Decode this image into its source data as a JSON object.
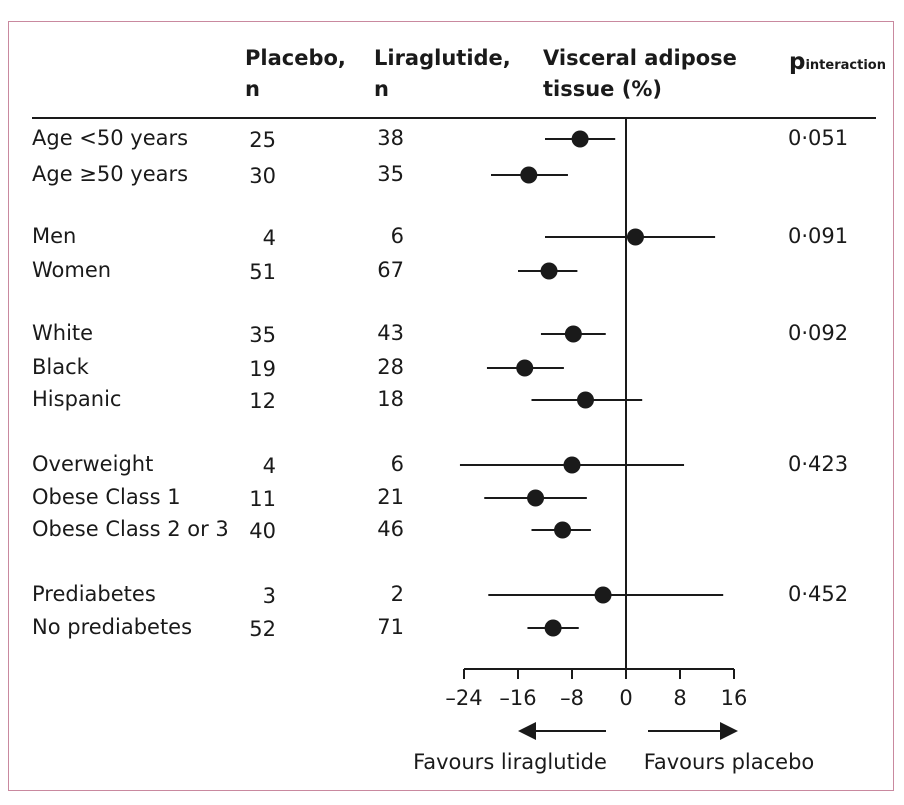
{
  "headers": {
    "placebo_line1": "Placebo,",
    "placebo_line2": "n",
    "liraglutide_line1": "Liraglutide,",
    "liraglutide_line2": "n",
    "vat_line1": "Visceral adipose",
    "vat_line2": "tissue (%)",
    "p_main": "p",
    "p_sub": "interaction"
  },
  "chart_data": {
    "type": "forest",
    "x_axis": {
      "ticks": [
        -24,
        -16,
        -8,
        0,
        8,
        16
      ],
      "tick_labels": [
        "–24",
        "–16",
        "–8",
        "0",
        "8",
        "16"
      ],
      "xlim": [
        -24,
        16
      ]
    },
    "reference_line": 0,
    "favours_left": "Favours liraglutide",
    "favours_right": "Favours placebo",
    "rows": [
      {
        "label": "Age <50 years",
        "placebo_n": "25",
        "liraglutide_n": "38",
        "estimate": -6.8,
        "ci": [
          -12.0,
          -1.6
        ],
        "p": "0·051"
      },
      {
        "label": "Age ≥50 years",
        "placebo_n": "30",
        "liraglutide_n": "35",
        "estimate": -14.4,
        "ci": [
          -20.0,
          -8.6
        ],
        "p": ""
      },
      {
        "label": "Men",
        "placebo_n": "4",
        "liraglutide_n": "6",
        "estimate": 1.4,
        "ci": [
          -12.0,
          13.2
        ],
        "p": "0·091"
      },
      {
        "label": "Women",
        "placebo_n": "51",
        "liraglutide_n": "67",
        "estimate": -11.4,
        "ci": [
          -16.0,
          -7.2
        ],
        "p": ""
      },
      {
        "label": "White",
        "placebo_n": "35",
        "liraglutide_n": "43",
        "estimate": -7.8,
        "ci": [
          -12.6,
          -3.0
        ],
        "p": "0·092"
      },
      {
        "label": "Black",
        "placebo_n": "19",
        "liraglutide_n": "28",
        "estimate": -15.0,
        "ci": [
          -20.6,
          -9.2
        ],
        "p": ""
      },
      {
        "label": "Hispanic",
        "placebo_n": "12",
        "liraglutide_n": "18",
        "estimate": -6.0,
        "ci": [
          -14.0,
          2.4
        ],
        "p": ""
      },
      {
        "label": "Overweight",
        "placebo_n": "4",
        "liraglutide_n": "6",
        "estimate": -8.0,
        "ci": [
          -24.6,
          8.6
        ],
        "p": "0·423"
      },
      {
        "label": "Obese Class 1",
        "placebo_n": "11",
        "liraglutide_n": "21",
        "estimate": -13.4,
        "ci": [
          -21.0,
          -5.8
        ],
        "p": ""
      },
      {
        "label": "Obese Class 2 or 3",
        "placebo_n": "40",
        "liraglutide_n": "46",
        "estimate": -9.4,
        "ci": [
          -14.0,
          -5.2
        ],
        "p": ""
      },
      {
        "label": "Prediabetes",
        "placebo_n": "3",
        "liraglutide_n": "2",
        "estimate": -3.4,
        "ci": [
          -20.4,
          14.4
        ],
        "p": "0·452"
      },
      {
        "label": "No prediabetes",
        "placebo_n": "52",
        "liraglutide_n": "71",
        "estimate": -10.8,
        "ci": [
          -14.6,
          -7.0
        ],
        "p": ""
      }
    ]
  }
}
